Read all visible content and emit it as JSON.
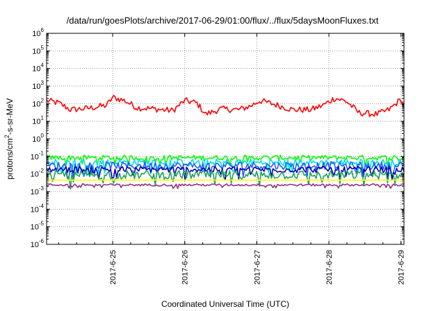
{
  "chart_data": {
    "type": "line",
    "title": "/data/run/goesPlots/archive/2017-06-29/01:00/flux/../flux/5daysMoonFluxes.txt",
    "xlabel": "Coordinated Universal Time (UTC)",
    "ylabel_parts": {
      "base": "protons/cm",
      "sup": "2",
      "rest": "-s-sr-MeV"
    },
    "yscale": "log",
    "ylim": [
      1e-06,
      1000000.0
    ],
    "y_ticks": [
      {
        "base": "10",
        "exp": "-6",
        "v": -6
      },
      {
        "base": "10",
        "exp": "-5",
        "v": -5
      },
      {
        "base": "10",
        "exp": "-4",
        "v": -4
      },
      {
        "base": "10",
        "exp": "-3",
        "v": -3
      },
      {
        "base": "10",
        "exp": "-2",
        "v": -2
      },
      {
        "base": "10",
        "exp": "-1",
        "v": -1
      },
      {
        "base": "10",
        "exp": "0",
        "v": 0
      },
      {
        "base": "10",
        "exp": "1",
        "v": 1
      },
      {
        "base": "10",
        "exp": "2",
        "v": 2
      },
      {
        "base": "10",
        "exp": "3",
        "v": 3
      },
      {
        "base": "10",
        "exp": "4",
        "v": 4
      },
      {
        "base": "10",
        "exp": "5",
        "v": 5
      },
      {
        "base": "10",
        "exp": "6",
        "v": 6
      }
    ],
    "xlim": [
      "2017-06-24 02:00",
      "2017-06-29 01:00"
    ],
    "x_ticks": [
      "2017-6-25",
      "2017-6-26",
      "2017-6-27",
      "2017-6-28",
      "2017-6-29"
    ],
    "grid": true,
    "series": [
      {
        "color": "#ff0000",
        "level": 80,
        "spread": 0.18,
        "anchors": [
          [
            "2017-06-24 02:00",
            150
          ],
          [
            "2017-06-24 06:00",
            110
          ],
          [
            "2017-06-24 10:00",
            45
          ],
          [
            "2017-06-24 16:00",
            55
          ],
          [
            "2017-06-24 22:00",
            80
          ],
          [
            "2017-06-25 00:00",
            230
          ],
          [
            "2017-06-25 04:00",
            150
          ],
          [
            "2017-06-25 08:00",
            60
          ],
          [
            "2017-06-25 14:00",
            50
          ],
          [
            "2017-06-25 20:00",
            40
          ],
          [
            "2017-06-26 00:00",
            150
          ],
          [
            "2017-06-26 04:00",
            110
          ],
          [
            "2017-06-26 07:00",
            25
          ],
          [
            "2017-06-26 12:00",
            50
          ],
          [
            "2017-06-26 18:00",
            45
          ],
          [
            "2017-06-26 22:00",
            75
          ],
          [
            "2017-06-27 01:00",
            150
          ],
          [
            "2017-06-27 06:00",
            90
          ],
          [
            "2017-06-27 12:00",
            45
          ],
          [
            "2017-06-27 18:00",
            45
          ],
          [
            "2017-06-27 22:00",
            80
          ],
          [
            "2017-06-28 02:00",
            210
          ],
          [
            "2017-06-28 06:00",
            130
          ],
          [
            "2017-06-28 10:00",
            30
          ],
          [
            "2017-06-28 16:00",
            25
          ],
          [
            "2017-06-28 20:00",
            45
          ],
          [
            "2017-06-29 00:00",
            180
          ],
          [
            "2017-06-29 01:00",
            70
          ]
        ]
      },
      {
        "color": "#00ff00",
        "level": 0.085,
        "spread": 0.14,
        "anchors": []
      },
      {
        "color": "#00e0e0",
        "level": 0.045,
        "spread": 0.2,
        "anchors": []
      },
      {
        "color": "#2060ff",
        "level": 0.03,
        "spread": 0.22,
        "anchors": []
      },
      {
        "color": "#0000b0",
        "level": 0.018,
        "spread": 0.18,
        "anchors": []
      },
      {
        "color": "#20a060",
        "level": 0.009,
        "spread": 0.25,
        "anchors": []
      },
      {
        "color": "#ffff00",
        "level": 0.0045,
        "spread": 0.01,
        "anchors": []
      },
      {
        "color": "#903080",
        "level": 0.0024,
        "spread": 0.06,
        "anchors": []
      }
    ]
  }
}
